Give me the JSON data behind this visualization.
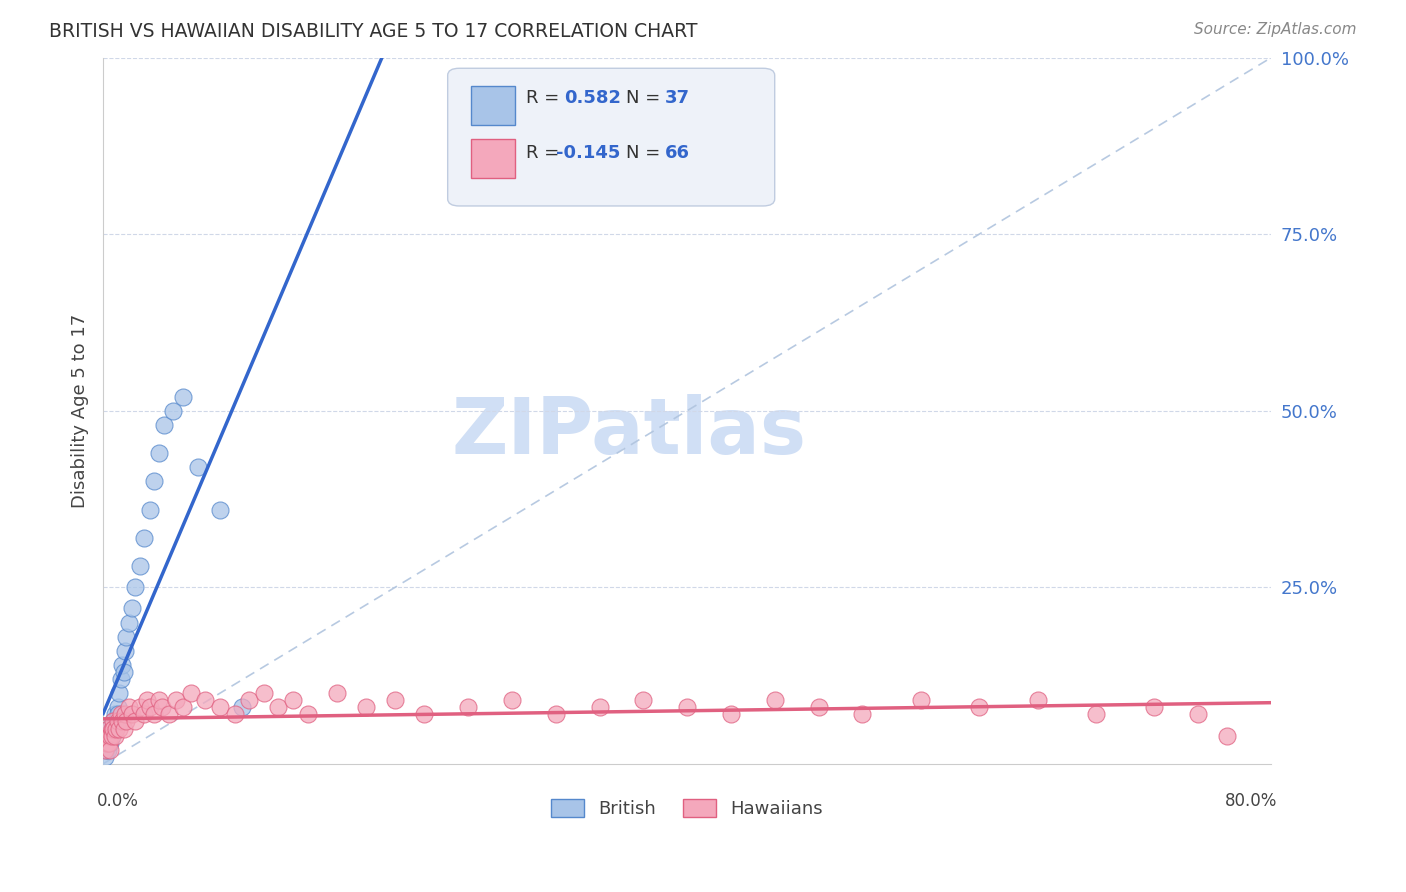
{
  "title": "BRITISH VS HAWAIIAN DISABILITY AGE 5 TO 17 CORRELATION CHART",
  "source_text": "Source: ZipAtlas.com",
  "ylabel": "Disability Age 5 to 17",
  "xlim": [
    0.0,
    0.8
  ],
  "ylim": [
    0.0,
    1.0
  ],
  "yticks": [
    0.0,
    0.25,
    0.5,
    0.75,
    1.0
  ],
  "ytick_labels": [
    "",
    "25.0%",
    "50.0%",
    "75.0%",
    "100.0%"
  ],
  "british_color": "#a8c4e8",
  "hawaiian_color": "#f4a8bc",
  "british_edge_color": "#5588cc",
  "hawaiian_edge_color": "#e06080",
  "british_line_color": "#3366cc",
  "hawaiian_line_color": "#e06080",
  "ref_line_color": "#b0c4de",
  "label_color": "#4477cc",
  "watermark_color": "#d0dff5",
  "british_x": [
    0.001,
    0.002,
    0.002,
    0.003,
    0.003,
    0.004,
    0.004,
    0.005,
    0.005,
    0.006,
    0.006,
    0.007,
    0.007,
    0.008,
    0.009,
    0.01,
    0.01,
    0.011,
    0.012,
    0.013,
    0.014,
    0.015,
    0.016,
    0.018,
    0.02,
    0.022,
    0.025,
    0.028,
    0.032,
    0.035,
    0.038,
    0.042,
    0.048,
    0.055,
    0.065,
    0.08,
    0.095
  ],
  "british_y": [
    0.01,
    0.02,
    0.03,
    0.02,
    0.04,
    0.03,
    0.05,
    0.04,
    0.03,
    0.05,
    0.04,
    0.06,
    0.05,
    0.07,
    0.06,
    0.08,
    0.07,
    0.1,
    0.12,
    0.14,
    0.13,
    0.16,
    0.18,
    0.2,
    0.22,
    0.25,
    0.28,
    0.32,
    0.36,
    0.4,
    0.44,
    0.48,
    0.5,
    0.52,
    0.42,
    0.36,
    0.08
  ],
  "hawaiian_x": [
    0.001,
    0.002,
    0.002,
    0.003,
    0.003,
    0.004,
    0.004,
    0.005,
    0.005,
    0.006,
    0.006,
    0.007,
    0.007,
    0.008,
    0.009,
    0.01,
    0.011,
    0.012,
    0.013,
    0.014,
    0.015,
    0.016,
    0.018,
    0.02,
    0.022,
    0.025,
    0.028,
    0.03,
    0.032,
    0.035,
    0.038,
    0.04,
    0.045,
    0.05,
    0.055,
    0.06,
    0.07,
    0.08,
    0.09,
    0.1,
    0.11,
    0.12,
    0.13,
    0.14,
    0.16,
    0.18,
    0.2,
    0.22,
    0.25,
    0.28,
    0.31,
    0.34,
    0.37,
    0.4,
    0.43,
    0.46,
    0.49,
    0.52,
    0.56,
    0.6,
    0.64,
    0.68,
    0.72,
    0.75,
    0.77
  ],
  "hawaiian_y": [
    0.02,
    0.03,
    0.04,
    0.03,
    0.05,
    0.04,
    0.03,
    0.04,
    0.02,
    0.05,
    0.04,
    0.06,
    0.05,
    0.04,
    0.05,
    0.06,
    0.05,
    0.07,
    0.06,
    0.05,
    0.07,
    0.06,
    0.08,
    0.07,
    0.06,
    0.08,
    0.07,
    0.09,
    0.08,
    0.07,
    0.09,
    0.08,
    0.07,
    0.09,
    0.08,
    0.1,
    0.09,
    0.08,
    0.07,
    0.09,
    0.1,
    0.08,
    0.09,
    0.07,
    0.1,
    0.08,
    0.09,
    0.07,
    0.08,
    0.09,
    0.07,
    0.08,
    0.09,
    0.08,
    0.07,
    0.09,
    0.08,
    0.07,
    0.09,
    0.08,
    0.09,
    0.07,
    0.08,
    0.07,
    0.04
  ]
}
